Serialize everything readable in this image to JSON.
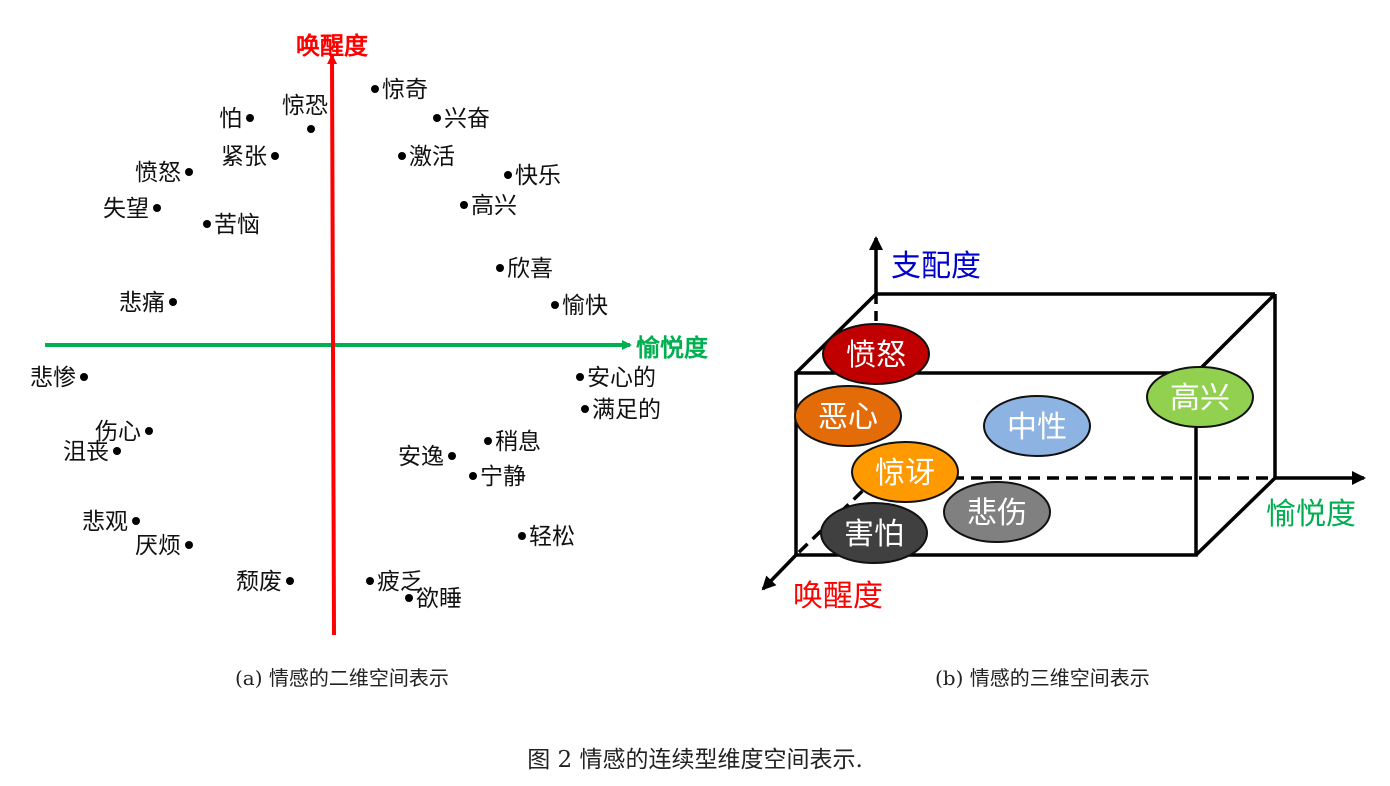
{
  "panel_a": {
    "axis_y_label": "唤醒度",
    "axis_x_label": "愉悦度",
    "axis_y_color": "#ff0000",
    "axis_x_color": "#00b050",
    "points": [
      "惊奇",
      "兴奋",
      "怕",
      "惊恐",
      "紧张",
      "激活",
      "愤怒",
      "快乐",
      "失望",
      "高兴",
      "苦恼",
      "欣喜",
      "悲痛",
      "愉快",
      "悲惨",
      "安心的",
      "满足的",
      "伤心",
      "稍息",
      "沮丧",
      "安逸",
      "宁静",
      "悲观",
      "轻松",
      "厌烦",
      "颓废",
      "疲乏",
      "欲睡"
    ],
    "caption": "(a) 情感的二维空间表示"
  },
  "panel_b": {
    "axis_vertical_label": "支配度",
    "axis_right_label": "愉悦度",
    "axis_front_label": "唤醒度",
    "axis_vertical_color": "#0000cc",
    "axis_right_color": "#00b050",
    "axis_front_color": "#ff0000",
    "emotions": [
      {
        "label": "愤怒",
        "color": "#c00000"
      },
      {
        "label": "恶心",
        "color": "#e36c09"
      },
      {
        "label": "惊讶",
        "color": "#ff9900"
      },
      {
        "label": "害怕",
        "color": "#404040"
      },
      {
        "label": "悲伤",
        "color": "#808080"
      },
      {
        "label": "中性",
        "color": "#8db3e2"
      },
      {
        "label": "高兴",
        "color": "#92d050"
      }
    ],
    "caption": "(b) 情感的三维空间表示"
  },
  "figure_caption": "图 2  情感的连续型维度空间表示."
}
